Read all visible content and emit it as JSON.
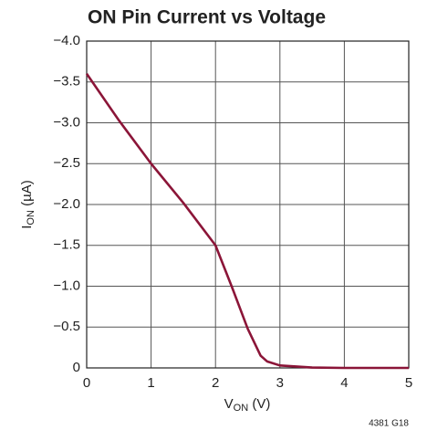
{
  "chart_data": {
    "type": "line",
    "title": "ON Pin Current vs Voltage",
    "ylabel": [
      "I",
      "ON",
      " (µA)"
    ],
    "xlabel": [
      "V",
      "ON",
      " (V)"
    ],
    "footnote": "4381 G18",
    "x": [
      0,
      0.5,
      1,
      1.5,
      2,
      2.25,
      2.5,
      2.7,
      2.8,
      3,
      3.5,
      4,
      5
    ],
    "series": [
      {
        "color": "#8b1538",
        "values": [
          -3.6,
          -3.03,
          -2.5,
          -2.02,
          -1.5,
          -1.0,
          -0.48,
          -0.15,
          -0.08,
          -0.03,
          -0.005,
          0,
          0
        ]
      }
    ],
    "xlim": [
      0,
      5
    ],
    "xticks": [
      0,
      1,
      2,
      3,
      4,
      5
    ],
    "ylim": [
      0,
      -4
    ],
    "yticks": [
      0,
      {
        "value": -0.5,
        "label": "−0.5"
      },
      {
        "value": -1,
        "label": "−1.0"
      },
      {
        "value": -1.5,
        "label": "−1.5"
      },
      {
        "value": -2,
        "label": "−2.0"
      },
      {
        "value": -2.5,
        "label": "−2.5"
      },
      {
        "value": -3,
        "label": "−3.0"
      },
      {
        "value": -3.5,
        "label": "−3.5"
      },
      {
        "value": -4,
        "label": "−4.0"
      }
    ],
    "grid": true
  }
}
